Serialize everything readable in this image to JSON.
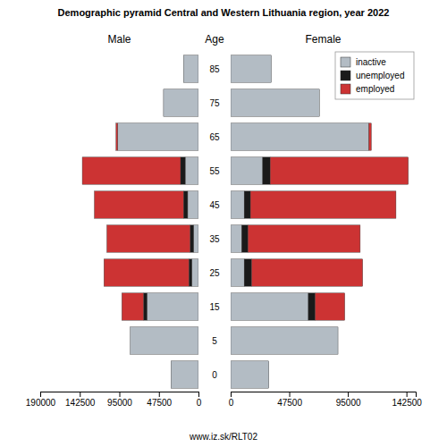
{
  "chart_data": [
    {
      "type": "bar",
      "orientation": "horizontal",
      "stacked": true,
      "title": "Demographic pyramid Central and Western Lithuania region, year 2022",
      "subtitle": "Male",
      "ylabel": "Age",
      "annotations": [
        "www.iz.sk/RLT02"
      ],
      "categories": [
        "0",
        "5",
        "15",
        "25",
        "35",
        "45",
        "55",
        "65",
        "75",
        "85"
      ],
      "series": [
        {
          "color": "#b3bcc4",
          "values": [
            33000,
            82000,
            62000,
            8000,
            6000,
            13000,
            16000,
            97000,
            42000,
            18000
          ]
        },
        {
          "color": "#1a1a1a",
          "values": [
            0,
            0,
            4000,
            3500,
            4000,
            5000,
            5500,
            0,
            0,
            0
          ]
        },
        {
          "color": "#cc3333",
          "values": [
            0,
            0,
            26000,
            102000,
            100000,
            107000,
            118000,
            2000,
            0,
            0
          ]
        }
      ],
      "xlim": [
        190000,
        0
      ],
      "xticks": [
        0,
        47500,
        95000,
        142500,
        190000
      ]
    },
    {
      "type": "bar",
      "orientation": "horizontal",
      "stacked": true,
      "subtitle": "Female",
      "categories": [
        "0",
        "5",
        "15",
        "25",
        "35",
        "45",
        "55",
        "65",
        "75",
        "85"
      ],
      "series": [
        {
          "name": "inactive",
          "color": "#b3bcc4",
          "values": [
            31000,
            87000,
            63000,
            11000,
            9000,
            11000,
            26000,
            112000,
            72000,
            33000
          ]
        },
        {
          "name": "unemployed",
          "color": "#1a1a1a",
          "values": [
            0,
            0,
            5500,
            6000,
            5000,
            5000,
            6000,
            0,
            0,
            0
          ]
        },
        {
          "name": "employed",
          "color": "#cc3333",
          "values": [
            0,
            0,
            24000,
            90000,
            91000,
            118000,
            112000,
            2000,
            0,
            0
          ]
        }
      ],
      "xlim": [
        0,
        150000
      ],
      "xticks": [
        0,
        47500,
        95000,
        142500
      ],
      "legend": "upper right"
    }
  ]
}
